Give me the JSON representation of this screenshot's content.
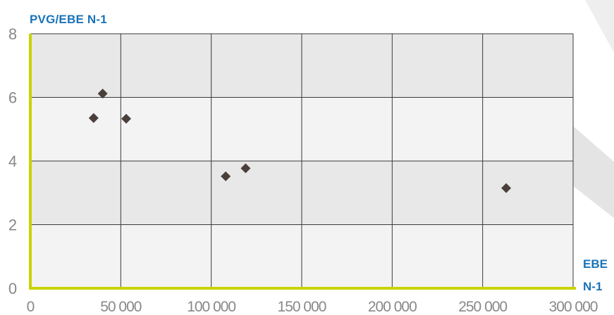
{
  "chart_data": {
    "type": "scatter",
    "title": "",
    "ylabel": "PVG/EBE N-1",
    "xlabel": "EBE N-1",
    "xlim": [
      0,
      300000
    ],
    "ylim": [
      0,
      8
    ],
    "x_ticks": [
      0,
      50000,
      100000,
      150000,
      200000,
      250000,
      300000
    ],
    "x_tick_labels": [
      "0",
      "50 000",
      "100 000",
      "150 000",
      "200 000",
      "250 000",
      "300 000"
    ],
    "y_ticks": [
      0,
      2,
      4,
      6,
      8
    ],
    "y_tick_labels": [
      "0",
      "2",
      "4",
      "6",
      "8"
    ],
    "grid": true,
    "series": [
      {
        "points": [
          {
            "x": 35000,
            "y": 5.35
          },
          {
            "x": 40000,
            "y": 6.12
          },
          {
            "x": 53000,
            "y": 5.33
          },
          {
            "x": 108000,
            "y": 3.52
          },
          {
            "x": 119000,
            "y": 3.77
          },
          {
            "x": 263000,
            "y": 3.15
          }
        ]
      }
    ],
    "colors": {
      "marker": "#4a3f3a",
      "axis": "#c8d400",
      "title": "#1a73b8",
      "band_dark": "#e8e8e8",
      "band_light": "#f3f3f3",
      "grid": "#3a3a3a",
      "tick_text": "#888888"
    }
  }
}
